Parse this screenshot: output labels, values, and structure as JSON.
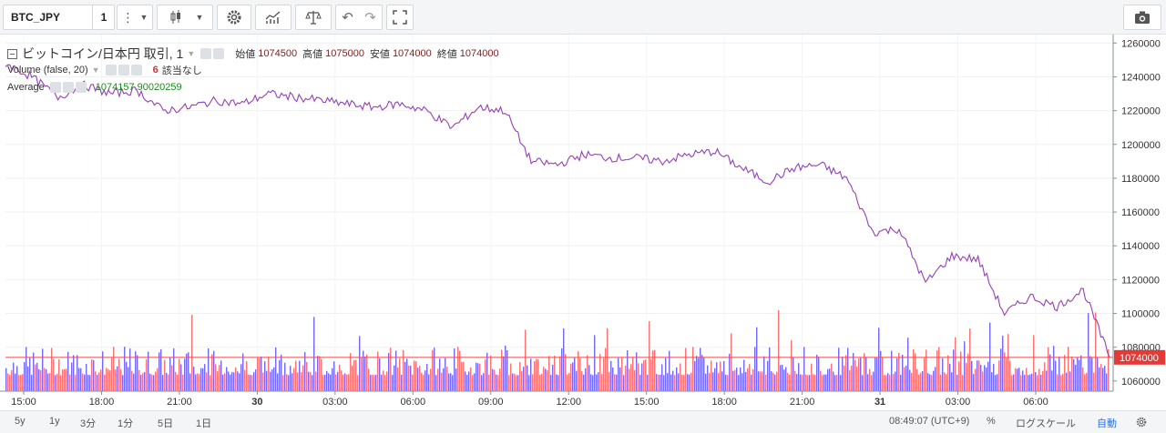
{
  "toolbar": {
    "symbol": "BTC_JPY",
    "interval": "1"
  },
  "legend": {
    "title": "ビットコイン/日本円 取引, 1",
    "open_label": "始値",
    "open": "1074500",
    "high_label": "高値",
    "high": "1075000",
    "low_label": "安値",
    "low": "1074000",
    "close_label": "終値",
    "close": "1074000",
    "volume_title": "Volume (false, 20)",
    "volume_count": "6",
    "volume_status": "該当なし",
    "average_title": "Average",
    "average_value": "1074157.90020259"
  },
  "bottom": {
    "ranges": [
      "5y",
      "1y",
      "3分",
      "1分",
      "5日",
      "1日"
    ],
    "clock": "08:49:07 (UTC+9)",
    "percent": "%",
    "log_scale": "ログスケール",
    "auto": "自動"
  },
  "chart_data": {
    "type": "line",
    "symbol": "BTC_JPY",
    "y_ticks": [
      1060000,
      1080000,
      1100000,
      1120000,
      1140000,
      1160000,
      1180000,
      1200000,
      1220000,
      1240000,
      1260000
    ],
    "ylim": [
      1054000,
      1265000
    ],
    "x_ticks": [
      "15:00",
      "18:00",
      "21:00",
      "30",
      "03:00",
      "06:00",
      "09:00",
      "12:00",
      "15:00",
      "18:00",
      "21:00",
      "31",
      "03:00",
      "06:00"
    ],
    "x_ticks_bold": [
      false,
      false,
      false,
      true,
      false,
      false,
      false,
      false,
      false,
      false,
      false,
      true,
      false,
      false
    ],
    "x": [
      "15:00",
      "16:00",
      "17:00",
      "18:00",
      "19:00",
      "20:00",
      "21:00",
      "22:00",
      "23:00",
      "00:00",
      "01:00",
      "02:00",
      "03:00",
      "04:00",
      "05:00",
      "06:00",
      "07:00",
      "08:00",
      "09:00",
      "10:00",
      "11:00",
      "12:00",
      "13:00",
      "14:00",
      "15:00",
      "16:00",
      "17:00",
      "18:00",
      "19:00",
      "20:00",
      "21:00",
      "22:00",
      "23:00",
      "00:00",
      "01:00",
      "02:00",
      "03:00",
      "04:00",
      "05:00",
      "06:00",
      "07:00",
      "08:00",
      "08:49"
    ],
    "series": [
      {
        "name": "ビットコイン/日本円",
        "values": [
          1248000,
          1240000,
          1228000,
          1235000,
          1230000,
          1232000,
          1220000,
          1222000,
          1226000,
          1224000,
          1230000,
          1228000,
          1226000,
          1224000,
          1222000,
          1224000,
          1220000,
          1210000,
          1222000,
          1220000,
          1190000,
          1188000,
          1194000,
          1192000,
          1192000,
          1190000,
          1194000,
          1196000,
          1186000,
          1178000,
          1186000,
          1188000,
          1180000,
          1148000,
          1150000,
          1118000,
          1134000,
          1132000,
          1100000,
          1110000,
          1104000,
          1114000,
          1074000
        ]
      }
    ],
    "current_price": 1074000,
    "volume": {
      "name": "Volume",
      "baseline_price": 1054000,
      "peak_price": 1092000
    }
  }
}
